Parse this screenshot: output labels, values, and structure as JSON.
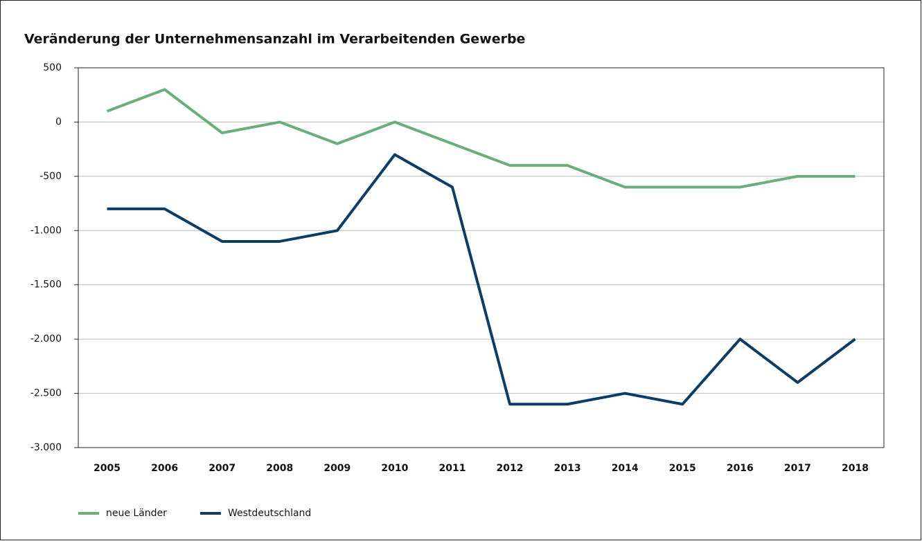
{
  "chart_data": {
    "type": "line",
    "title": "Veränderung der Unternehmensanzahl im Verarbeitenden Gewerbe",
    "categories": [
      "2005",
      "2006",
      "2007",
      "2008",
      "2009",
      "2010",
      "2011",
      "2012",
      "2013",
      "2014",
      "2015",
      "2016",
      "2017",
      "2018"
    ],
    "series": [
      {
        "name": "neue Länder",
        "color": "#6aaf78",
        "values": [
          100,
          300,
          -100,
          0,
          -200,
          0,
          -200,
          -400,
          -400,
          -600,
          -600,
          -600,
          -500,
          -500
        ]
      },
      {
        "name": "Westdeutschland",
        "color": "#0b3d66",
        "values": [
          -800,
          -800,
          -1100,
          -1100,
          -1000,
          -300,
          -600,
          -2600,
          -2600,
          -2500,
          -2600,
          -2000,
          -2400,
          -2000
        ]
      }
    ],
    "ylim": [
      -3000,
      500
    ],
    "yticks": [
      {
        "value": -3000,
        "label": "-3.000"
      },
      {
        "value": -2500,
        "label": "-2.500"
      },
      {
        "value": -2000,
        "label": "-2.000"
      },
      {
        "value": -1500,
        "label": "-1.500"
      },
      {
        "value": -1000,
        "label": "-1.000"
      },
      -500,
      0,
      500
    ],
    "grid": true,
    "legend": "bottom-left"
  }
}
